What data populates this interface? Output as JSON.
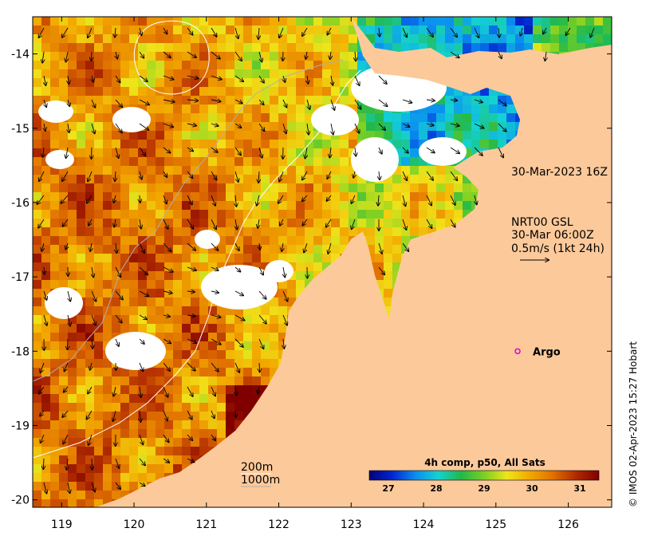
{
  "map": {
    "colors": {
      "land": "#fcc99a",
      "cloud": "#ffffff",
      "frame": "#000000",
      "bathy_200m": "#ffffff",
      "bathy_1000m": "#b0b0b0",
      "argo_marker": "#e000e0",
      "colorbar_ramp": [
        "#00007a",
        "#0026d0",
        "#0a8cf0",
        "#14d2d2",
        "#22b84a",
        "#7ad024",
        "#f0e41a",
        "#f2a800",
        "#e07000",
        "#b02a00",
        "#800000"
      ]
    },
    "sst_scale": {
      "min": 26.6,
      "max": 31.4,
      "unit": "°C"
    },
    "x_ticks": [
      "119",
      "120",
      "121",
      "122",
      "123",
      "124",
      "125",
      "126"
    ],
    "y_ticks": [
      "-14",
      "-15",
      "-16",
      "-17",
      "-18",
      "-19",
      "-20"
    ],
    "lon_range": [
      118.6,
      126.6
    ],
    "lat_range": [
      -20.1,
      -13.5
    ],
    "annotations": {
      "timestamp": "30-Mar-2023 16Z",
      "current_title": "NRT00 GSL",
      "current_time": "30-Mar 06:00Z",
      "current_scale": "0.5m/s (1kt 24h)",
      "bathy_200": "200m",
      "bathy_1000": "1000m"
    },
    "argo": {
      "label": "Argo",
      "lon": 125.3,
      "lat": -18.0
    },
    "colorbar": {
      "title": "4h comp, p50, All Sats",
      "ticks": [
        "27",
        "28",
        "29",
        "30",
        "31"
      ]
    },
    "credit": "© IMOS 02-Apr-2023 15:27 Hobart"
  }
}
